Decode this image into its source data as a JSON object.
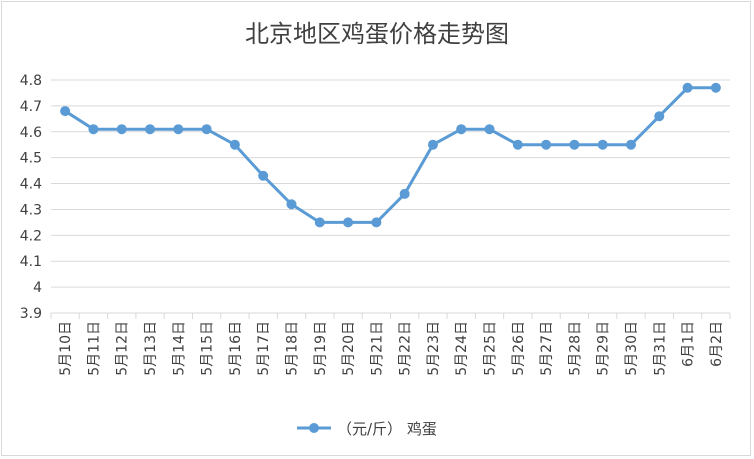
{
  "chart_data": {
    "type": "line",
    "title": "北京地区鸡蛋价格走势图",
    "xlabel": "",
    "ylabel": "",
    "categories": [
      "5月10日",
      "5月11日",
      "5月12日",
      "5月13日",
      "5月14日",
      "5月15日",
      "5月16日",
      "5月17日",
      "5月18日",
      "5月19日",
      "5月20日",
      "5月21日",
      "5月22日",
      "5月23日",
      "5月24日",
      "5月25日",
      "5月26日",
      "5月27日",
      "5月28日",
      "5月29日",
      "5月30日",
      "5月31日",
      "6月1日",
      "6月2日"
    ],
    "series": [
      {
        "name": "（元/斤） 鸡蛋",
        "values": [
          4.68,
          4.61,
          4.61,
          4.61,
          4.61,
          4.61,
          4.55,
          4.43,
          4.32,
          4.25,
          4.25,
          4.25,
          4.36,
          4.55,
          4.61,
          4.61,
          4.55,
          4.55,
          4.55,
          4.55,
          4.55,
          4.66,
          4.77,
          4.77
        ]
      }
    ],
    "yticks": [
      "3.9",
      "4",
      "4.1",
      "4.2",
      "4.3",
      "4.4",
      "4.5",
      "4.6",
      "4.7",
      "4.8"
    ],
    "ylim": [
      3.9,
      4.8
    ],
    "grid": true,
    "legend_position": "bottom",
    "line_color": "#5b9bd5"
  }
}
